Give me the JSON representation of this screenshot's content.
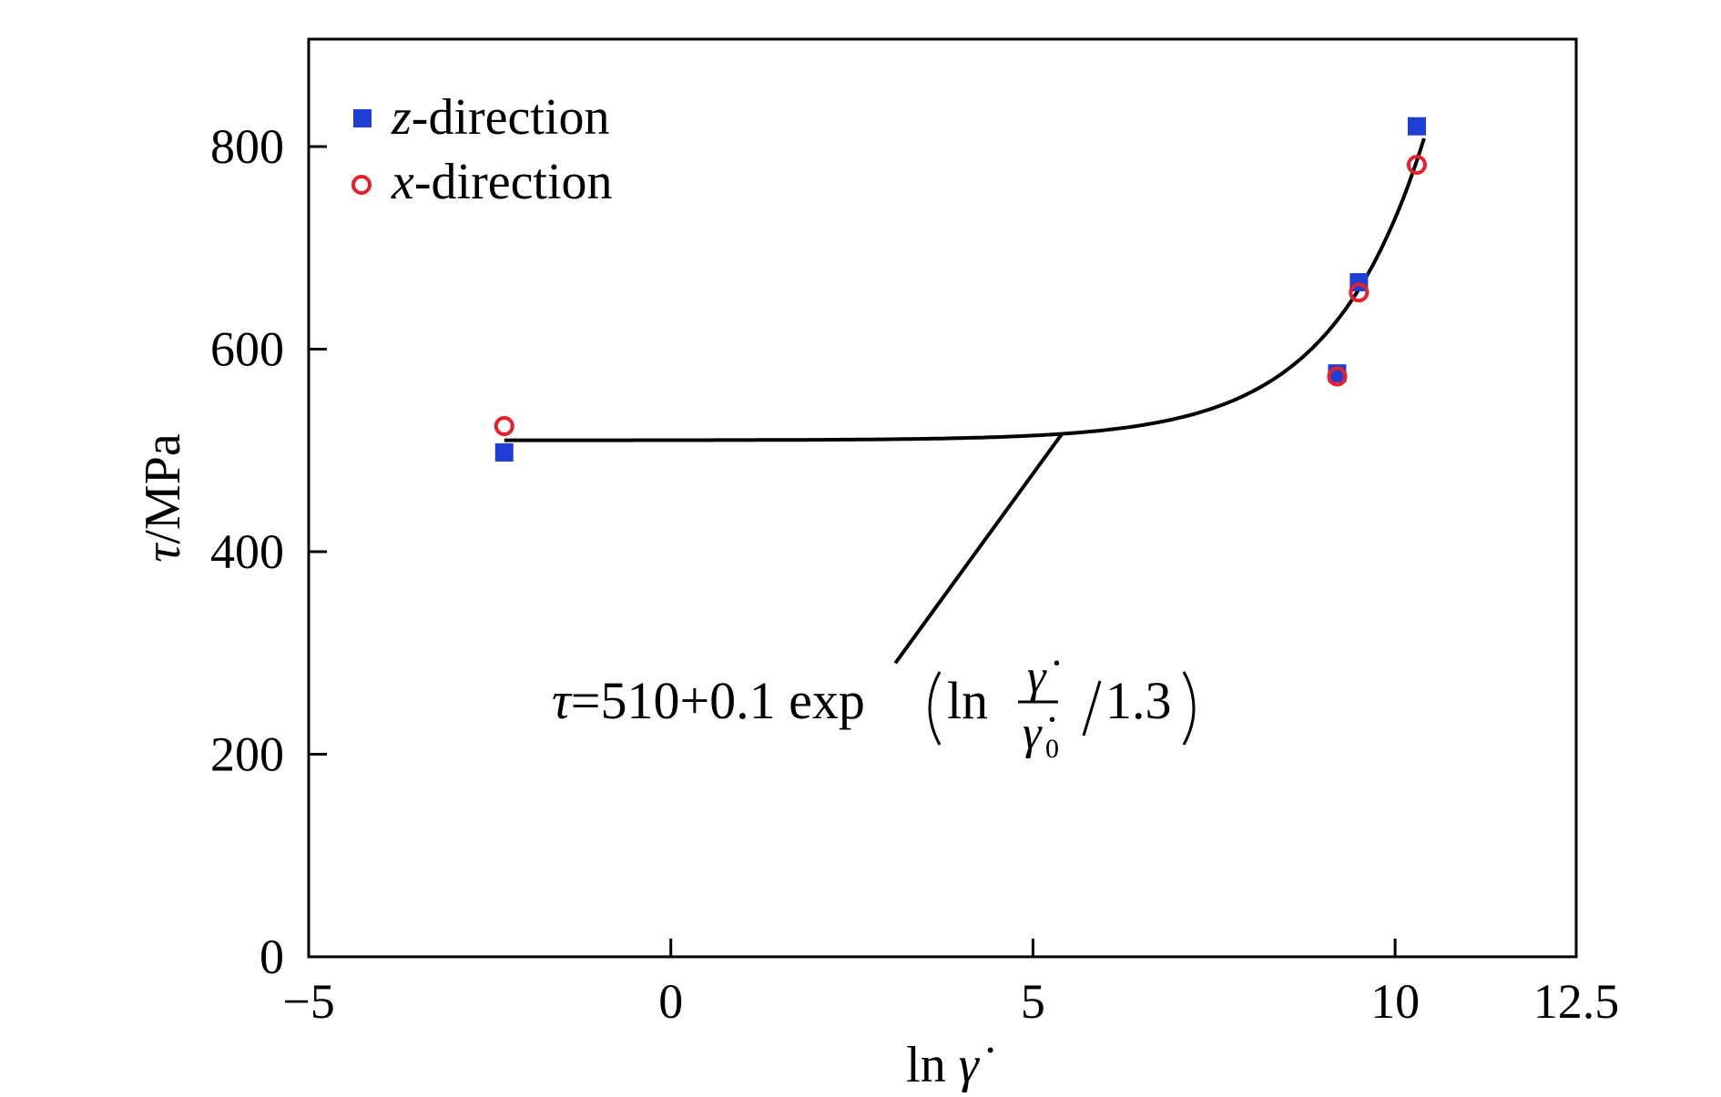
{
  "chart_data": {
    "type": "scatter",
    "xlabel": "ln γ̇",
    "ylabel": "τ/MPa",
    "xlim": [
      -5,
      12.5
    ],
    "ylim": [
      0,
      900
    ],
    "x_ticks": [
      -5,
      0,
      5,
      10,
      12.5
    ],
    "x_tick_labels": [
      "−5",
      "0",
      "5",
      "10",
      "12.5"
    ],
    "y_ticks": [
      0,
      200,
      400,
      600,
      800
    ],
    "y_tick_labels": [
      "0",
      "200",
      "400",
      "600",
      "800"
    ],
    "grid": false,
    "legend_position": "top-left",
    "series": [
      {
        "name": "z-direction",
        "name_italic": "z",
        "name_rest": "-direction",
        "marker": "filled-square",
        "color": "#1f3fd4",
        "x": [
          -2.3,
          9.2,
          9.5,
          10.3
        ],
        "y": [
          498,
          576,
          666,
          820
        ]
      },
      {
        "name": "x-direction",
        "name_italic": "x",
        "name_rest": "-direction",
        "marker": "open-circle",
        "color": "#e8202a",
        "x": [
          -2.3,
          9.2,
          9.5,
          10.3
        ],
        "y": [
          524,
          573,
          656,
          782
        ]
      }
    ],
    "fit": {
      "equation": "τ=510+0.1 exp(ln γ̇/γ̇₀ /1.3)",
      "color": "#000000",
      "x_range": [
        -2.3,
        10.4
      ]
    },
    "annotation": {
      "tau": "τ",
      "text": "=510+0.1 exp",
      "ln": "ln",
      "numerator": "γ̇",
      "denominator": "γ̇",
      "sub": "0",
      "tail": "1.3",
      "point_on_curve_x": 5.4,
      "leader_end": [
        3.1,
        290
      ]
    }
  }
}
